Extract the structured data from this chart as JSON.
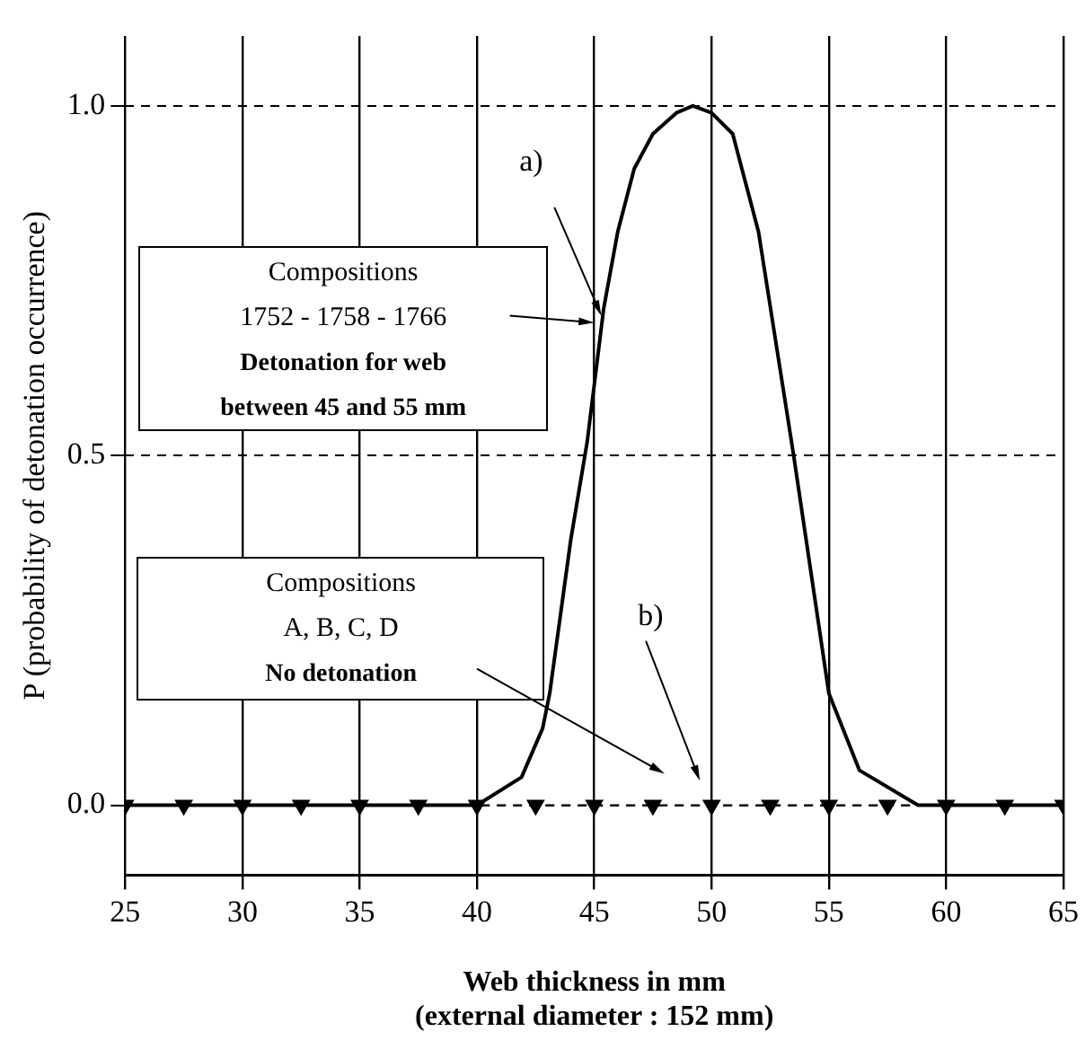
{
  "chart_data": {
    "type": "line",
    "xlabel": "Web thickness in mm\n(external diameter : 152 mm)",
    "ylabel": "P (probability of detonation occurrence)",
    "xlim": [
      25,
      65
    ],
    "xticks": [
      25,
      30,
      35,
      40,
      45,
      50,
      55,
      60,
      65
    ],
    "ylim": [
      -0.1,
      1.1
    ],
    "yticks": [
      {
        "value": 0,
        "label": "0.0"
      },
      {
        "value": 0.5,
        "label": "0.5"
      },
      {
        "value": 1,
        "label": "1.0"
      }
    ],
    "grid": true,
    "legend": false,
    "series": [
      {
        "color": "#000000",
        "line_style": "solid",
        "marker": "none",
        "x": [
          25,
          30,
          35,
          40,
          41.9,
          42.8,
          43.1,
          44,
          44.7,
          45.4,
          46,
          46.7,
          47.5,
          48.5,
          49.2,
          50,
          50.9,
          52,
          53.5,
          55,
          56.3,
          58.8,
          60,
          65
        ],
        "values": [
          0,
          0,
          0,
          0,
          0.04,
          0.11,
          0.16,
          0.38,
          0.52,
          0.71,
          0.82,
          0.91,
          0.96,
          0.99,
          1,
          0.99,
          0.96,
          0.82,
          0.5,
          0.16,
          0.05,
          0,
          0,
          0
        ]
      },
      {
        "color": "#000000",
        "line_style": "dashed",
        "marker": "triangle",
        "x": [
          25,
          27.5,
          30,
          32.5,
          35,
          37.5,
          40,
          42.5,
          45,
          47.5,
          50,
          52.5,
          55,
          57.5,
          60,
          62.5,
          65
        ],
        "values": [
          0,
          0,
          0,
          0,
          0,
          0,
          0,
          0,
          0,
          0,
          0,
          0,
          0,
          0,
          0,
          0,
          0
        ]
      }
    ],
    "annotations": [
      {
        "text": "a)",
        "x": 45.3,
        "y": 0.7
      },
      "Compositions",
      "1752 - 1758 - 1766",
      "Detonation for web",
      "between 45 and 55 mm",
      "b)",
      "Compositions",
      "A, B, C, D",
      "No detonation"
    ]
  }
}
